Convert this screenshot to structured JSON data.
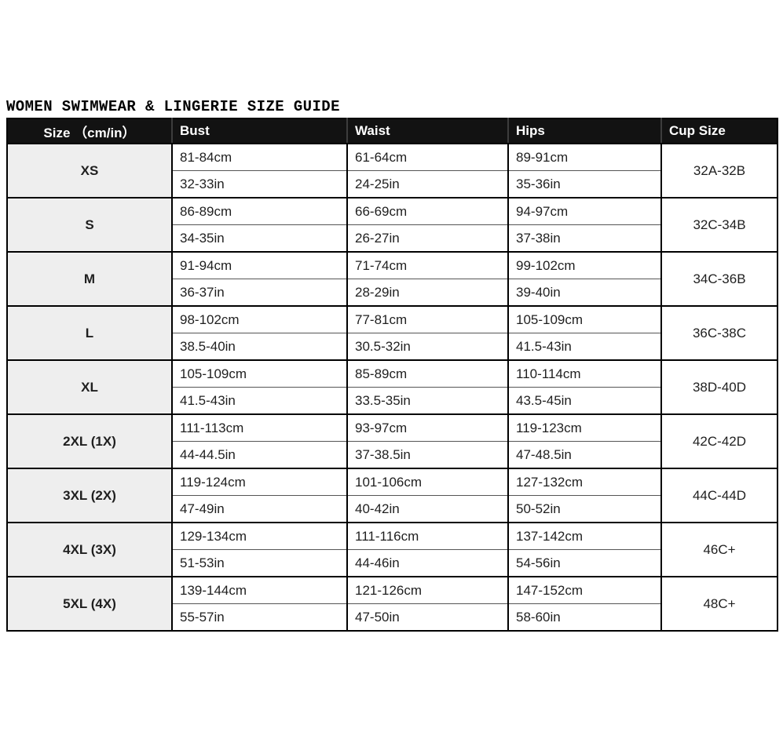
{
  "title": "WOMEN SWIMWEAR & LINGERIE SIZE GUIDE",
  "colors": {
    "header_bg": "#121212",
    "header_text": "#ffffff",
    "size_column_bg": "#eeeeee",
    "border": "#000000",
    "subrow_divider": "#555555",
    "cell_text": "#1f1f1f"
  },
  "table": {
    "headers": {
      "size": "Size （cm/in）",
      "bust": "Bust",
      "waist": "Waist",
      "hips": "Hips",
      "cup": "Cup Size"
    },
    "rows": [
      {
        "size": "XS",
        "bust_cm": "81-84cm",
        "bust_in": "32-33in",
        "waist_cm": "61-64cm",
        "waist_in": "24-25in",
        "hips_cm": "89-91cm",
        "hips_in": "35-36in",
        "cup": "32A-32B"
      },
      {
        "size": "S",
        "bust_cm": "86-89cm",
        "bust_in": "34-35in",
        "waist_cm": "66-69cm",
        "waist_in": "26-27in",
        "hips_cm": "94-97cm",
        "hips_in": "37-38in",
        "cup": "32C-34B"
      },
      {
        "size": "M",
        "bust_cm": "91-94cm",
        "bust_in": "36-37in",
        "waist_cm": "71-74cm",
        "waist_in": "28-29in",
        "hips_cm": "99-102cm",
        "hips_in": "39-40in",
        "cup": "34C-36B"
      },
      {
        "size": "L",
        "bust_cm": "98-102cm",
        "bust_in": "38.5-40in",
        "waist_cm": "77-81cm",
        "waist_in": "30.5-32in",
        "hips_cm": "105-109cm",
        "hips_in": "41.5-43in",
        "cup": "36C-38C"
      },
      {
        "size": "XL",
        "bust_cm": "105-109cm",
        "bust_in": "41.5-43in",
        "waist_cm": "85-89cm",
        "waist_in": "33.5-35in",
        "hips_cm": "110-114cm",
        "hips_in": "43.5-45in",
        "cup": "38D-40D"
      },
      {
        "size": "2XL (1X)",
        "bust_cm": "111-113cm",
        "bust_in": "44-44.5in",
        "waist_cm": "93-97cm",
        "waist_in": "37-38.5in",
        "hips_cm": "119-123cm",
        "hips_in": "47-48.5in",
        "cup": "42C-42D"
      },
      {
        "size": "3XL (2X)",
        "bust_cm": "119-124cm",
        "bust_in": "47-49in",
        "waist_cm": "101-106cm",
        "waist_in": "40-42in",
        "hips_cm": "127-132cm",
        "hips_in": "50-52in",
        "cup": "44C-44D"
      },
      {
        "size": "4XL (3X)",
        "bust_cm": "129-134cm",
        "bust_in": "51-53in",
        "waist_cm": "111-116cm",
        "waist_in": "44-46in",
        "hips_cm": "137-142cm",
        "hips_in": "54-56in",
        "cup": "46C+"
      },
      {
        "size": "5XL (4X)",
        "bust_cm": "139-144cm",
        "bust_in": "55-57in",
        "waist_cm": "121-126cm",
        "waist_in": "47-50in",
        "hips_cm": "147-152cm",
        "hips_in": "58-60in",
        "cup": "48C+"
      }
    ]
  }
}
